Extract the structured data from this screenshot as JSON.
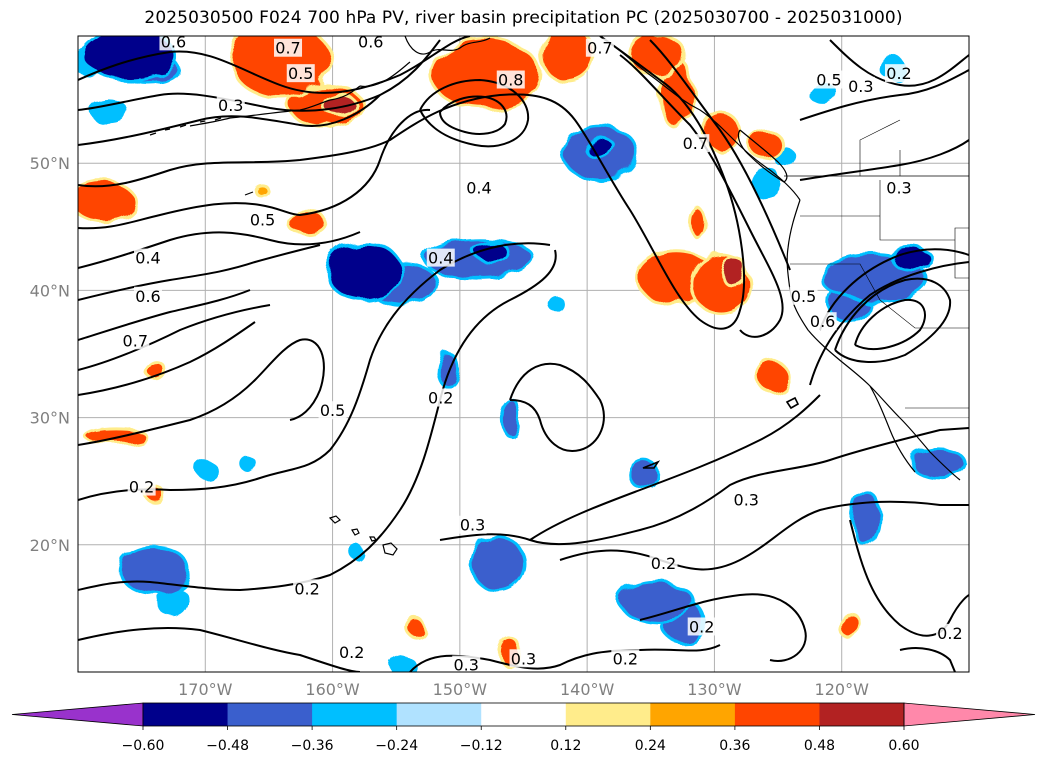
{
  "chart_data": {
    "type": "heatmap",
    "title": "2025030500 F024 700 hPa PV, river basin precipitation PC (2025030700 - 2025031000)",
    "map": {
      "projection": "lat-lon",
      "lon_range": [
        -180,
        -110
      ],
      "lat_range": [
        10,
        60
      ],
      "grid": true
    },
    "x_ticks": [
      {
        "lon": -170,
        "label": "170°W"
      },
      {
        "lon": -160,
        "label": "160°W"
      },
      {
        "lon": -150,
        "label": "150°W"
      },
      {
        "lon": -140,
        "label": "140°W"
      },
      {
        "lon": -130,
        "label": "130°W"
      },
      {
        "lon": -120,
        "label": "120°W"
      }
    ],
    "y_ticks": [
      {
        "lat": 20,
        "label": "20°N"
      },
      {
        "lat": 30,
        "label": "30°N"
      },
      {
        "lat": 40,
        "label": "40°N"
      },
      {
        "lat": 50,
        "label": "50°N"
      }
    ],
    "colorbar": {
      "extend": "both",
      "bounds": [
        -0.6,
        -0.48,
        -0.36,
        -0.24,
        -0.12,
        0.12,
        0.24,
        0.36,
        0.48,
        0.6
      ],
      "tick_labels": [
        "−0.60",
        "−0.48",
        "−0.36",
        "−0.24",
        "−0.12",
        "0.12",
        "0.24",
        "0.36",
        "0.48",
        "0.60"
      ],
      "colors": [
        "#9932cc",
        "#00008b",
        "#3a5fcd",
        "#00bfff",
        "#b0e2ff",
        "#ffffff",
        "#ffec8b",
        "#ffa500",
        "#ff4500",
        "#b22222",
        "#ff88aa"
      ]
    },
    "pv_contour_labels": [
      {
        "lon": -172.5,
        "lat": 59.5,
        "label": "0.6"
      },
      {
        "lon": -163.5,
        "lat": 59.0,
        "label": "0.7"
      },
      {
        "lon": -162.5,
        "lat": 57.0,
        "label": "0.5"
      },
      {
        "lon": -168.0,
        "lat": 54.5,
        "label": "0.3"
      },
      {
        "lon": -157.0,
        "lat": 59.5,
        "label": "0.6"
      },
      {
        "lon": -146.0,
        "lat": 56.5,
        "label": "0.8"
      },
      {
        "lon": -139.0,
        "lat": 59.0,
        "label": "0.7"
      },
      {
        "lon": -131.5,
        "lat": 51.5,
        "label": "0.7"
      },
      {
        "lon": -148.5,
        "lat": 48.0,
        "label": "0.4"
      },
      {
        "lon": -165.5,
        "lat": 45.5,
        "label": "0.5"
      },
      {
        "lon": -174.5,
        "lat": 42.5,
        "label": "0.4"
      },
      {
        "lon": -174.5,
        "lat": 39.5,
        "label": "0.6"
      },
      {
        "lon": -175.5,
        "lat": 36.0,
        "label": "0.7"
      },
      {
        "lon": -151.5,
        "lat": 42.5,
        "label": "0.4"
      },
      {
        "lon": -160.0,
        "lat": 30.5,
        "label": "0.5"
      },
      {
        "lon": -151.5,
        "lat": 31.5,
        "label": "0.2"
      },
      {
        "lon": -175.0,
        "lat": 24.5,
        "label": "0.2"
      },
      {
        "lon": -149.0,
        "lat": 21.5,
        "label": "0.3"
      },
      {
        "lon": -162.0,
        "lat": 16.5,
        "label": "0.2"
      },
      {
        "lon": -158.5,
        "lat": 11.5,
        "label": "0.2"
      },
      {
        "lon": -149.5,
        "lat": 10.5,
        "label": "0.3"
      },
      {
        "lon": -145.0,
        "lat": 11.0,
        "label": "0.3"
      },
      {
        "lon": -137.0,
        "lat": 11.0,
        "label": "0.2"
      },
      {
        "lon": -134.0,
        "lat": 18.5,
        "label": "0.2"
      },
      {
        "lon": -131.0,
        "lat": 13.5,
        "label": "0.2"
      },
      {
        "lon": -127.5,
        "lat": 23.5,
        "label": "0.3"
      },
      {
        "lon": -123.0,
        "lat": 39.5,
        "label": "0.5"
      },
      {
        "lon": -121.5,
        "lat": 37.5,
        "label": "0.6"
      },
      {
        "lon": -121.0,
        "lat": 56.5,
        "label": "0.5"
      },
      {
        "lon": -118.5,
        "lat": 56.0,
        "label": "0.3"
      },
      {
        "lon": -115.5,
        "lat": 57.0,
        "label": "0.2"
      },
      {
        "lon": -115.5,
        "lat": 48.0,
        "label": "0.3"
      },
      {
        "lon": -111.5,
        "lat": 13.0,
        "label": "0.2"
      }
    ],
    "precip_pc_regions": [
      {
        "lon": -176.0,
        "lat": 58.5,
        "value": -0.55,
        "rx": 3.5,
        "ry": 1.8
      },
      {
        "lon": -174.5,
        "lat": 57.5,
        "value": -0.4,
        "rx": 2.2,
        "ry": 1.0
      },
      {
        "lon": -179.0,
        "lat": 58.0,
        "value": -0.3,
        "rx": 1.2,
        "ry": 1.0
      },
      {
        "lon": -177.5,
        "lat": 54.0,
        "value": -0.35,
        "rx": 1.3,
        "ry": 0.7
      },
      {
        "lon": -164.0,
        "lat": 58.0,
        "value": 0.4,
        "rx": 3.8,
        "ry": 2.8
      },
      {
        "lon": -160.5,
        "lat": 54.5,
        "value": 0.42,
        "rx": 2.8,
        "ry": 1.5
      },
      {
        "lon": -159.5,
        "lat": 54.6,
        "value": 0.5,
        "rx": 1.2,
        "ry": 0.7
      },
      {
        "lon": -148.0,
        "lat": 57.0,
        "value": 0.4,
        "rx": 4.2,
        "ry": 2.6
      },
      {
        "lon": -141.5,
        "lat": 58.5,
        "value": 0.4,
        "rx": 2.0,
        "ry": 2.0
      },
      {
        "lon": -134.5,
        "lat": 58.5,
        "value": 0.4,
        "rx": 2.0,
        "ry": 1.6
      },
      {
        "lon": -133.0,
        "lat": 55.5,
        "value": 0.38,
        "rx": 1.2,
        "ry": 2.6
      },
      {
        "lon": -129.5,
        "lat": 52.5,
        "value": 0.38,
        "rx": 1.3,
        "ry": 1.4
      },
      {
        "lon": -126.0,
        "lat": 51.5,
        "value": 0.4,
        "rx": 1.2,
        "ry": 1.0
      },
      {
        "lon": -178.0,
        "lat": 47.0,
        "value": 0.38,
        "rx": 2.4,
        "ry": 1.4
      },
      {
        "lon": -165.5,
        "lat": 47.8,
        "value": 0.3,
        "rx": 0.4,
        "ry": 0.3
      },
      {
        "lon": -162.0,
        "lat": 45.3,
        "value": 0.38,
        "rx": 1.4,
        "ry": 0.8
      },
      {
        "lon": -133.0,
        "lat": 41.0,
        "value": 0.4,
        "rx": 3.0,
        "ry": 2.0
      },
      {
        "lon": -129.5,
        "lat": 40.5,
        "value": 0.45,
        "rx": 2.2,
        "ry": 2.2
      },
      {
        "lon": -128.5,
        "lat": 41.5,
        "value": 0.5,
        "rx": 0.9,
        "ry": 1.0
      },
      {
        "lon": -131.3,
        "lat": 45.3,
        "value": 0.38,
        "rx": 0.5,
        "ry": 1.0
      },
      {
        "lon": -125.5,
        "lat": 33.3,
        "value": 0.4,
        "rx": 1.1,
        "ry": 1.1
      },
      {
        "lon": -174.0,
        "lat": 33.8,
        "value": 0.4,
        "rx": 0.6,
        "ry": 0.6
      },
      {
        "lon": -177.0,
        "lat": 28.5,
        "value": 0.38,
        "rx": 2.3,
        "ry": 0.5
      },
      {
        "lon": -174.0,
        "lat": 24.0,
        "value": 0.4,
        "rx": 0.6,
        "ry": 0.5
      },
      {
        "lon": -153.5,
        "lat": 13.5,
        "value": 0.4,
        "rx": 0.6,
        "ry": 0.6
      },
      {
        "lon": -146.0,
        "lat": 11.5,
        "value": 0.42,
        "rx": 0.7,
        "ry": 1.0
      },
      {
        "lon": -119.5,
        "lat": 13.8,
        "value": 0.4,
        "rx": 0.8,
        "ry": 0.8
      },
      {
        "lon": -157.5,
        "lat": 41.5,
        "value": -0.5,
        "rx": 2.8,
        "ry": 2.2
      },
      {
        "lon": -154.5,
        "lat": 40.5,
        "value": -0.4,
        "rx": 2.6,
        "ry": 1.6
      },
      {
        "lon": -148.5,
        "lat": 42.5,
        "value": -0.48,
        "rx": 4.2,
        "ry": 1.4
      },
      {
        "lon": -147.5,
        "lat": 43.0,
        "value": -0.55,
        "rx": 1.2,
        "ry": 0.7
      },
      {
        "lon": -139.0,
        "lat": 50.8,
        "value": -0.45,
        "rx": 2.8,
        "ry": 2.0
      },
      {
        "lon": -139.0,
        "lat": 51.2,
        "value": -0.6,
        "rx": 1.1,
        "ry": 0.6
      },
      {
        "lon": -126.0,
        "lat": 48.5,
        "value": -0.3,
        "rx": 1.0,
        "ry": 1.0
      },
      {
        "lon": -124.5,
        "lat": 50.5,
        "value": -0.28,
        "rx": 0.6,
        "ry": 0.6
      },
      {
        "lon": -121.5,
        "lat": 55.5,
        "value": -0.3,
        "rx": 0.9,
        "ry": 0.6
      },
      {
        "lon": -116.0,
        "lat": 57.5,
        "value": -0.3,
        "rx": 0.8,
        "ry": 0.7
      },
      {
        "lon": -117.5,
        "lat": 41.0,
        "value": -0.42,
        "rx": 4.0,
        "ry": 1.7
      },
      {
        "lon": -114.5,
        "lat": 42.5,
        "value": -0.55,
        "rx": 1.5,
        "ry": 0.7
      },
      {
        "lon": -119.5,
        "lat": 39.0,
        "value": -0.4,
        "rx": 1.4,
        "ry": 1.4
      },
      {
        "lon": -112.5,
        "lat": 26.5,
        "value": -0.4,
        "rx": 2.0,
        "ry": 1.0
      },
      {
        "lon": -118.0,
        "lat": 22.0,
        "value": -0.38,
        "rx": 1.0,
        "ry": 2.0
      },
      {
        "lon": -151.0,
        "lat": 33.8,
        "value": -0.38,
        "rx": 0.7,
        "ry": 1.2
      },
      {
        "lon": -146.0,
        "lat": 30.0,
        "value": -0.38,
        "rx": 0.7,
        "ry": 1.3
      },
      {
        "lon": -142.5,
        "lat": 39.0,
        "value": -0.25,
        "rx": 0.4,
        "ry": 0.4
      },
      {
        "lon": -135.5,
        "lat": 25.5,
        "value": -0.4,
        "rx": 1.0,
        "ry": 1.0
      },
      {
        "lon": -174.0,
        "lat": 18.0,
        "value": -0.45,
        "rx": 2.6,
        "ry": 1.7
      },
      {
        "lon": -172.5,
        "lat": 15.5,
        "value": -0.35,
        "rx": 1.0,
        "ry": 1.0
      },
      {
        "lon": -147.0,
        "lat": 18.5,
        "value": -0.45,
        "rx": 2.0,
        "ry": 2.0
      },
      {
        "lon": -134.5,
        "lat": 15.5,
        "value": -0.42,
        "rx": 2.8,
        "ry": 1.4
      },
      {
        "lon": -132.5,
        "lat": 14.0,
        "value": -0.4,
        "rx": 1.6,
        "ry": 1.5
      },
      {
        "lon": -170.0,
        "lat": 26.0,
        "value": -0.35,
        "rx": 0.6,
        "ry": 0.5
      },
      {
        "lon": -166.5,
        "lat": 26.2,
        "value": -0.3,
        "rx": 0.4,
        "ry": 0.4
      },
      {
        "lon": -158.0,
        "lat": 19.3,
        "value": -0.28,
        "rx": 0.3,
        "ry": 0.4
      },
      {
        "lon": -154.5,
        "lat": 10.5,
        "value": -0.35,
        "rx": 0.8,
        "ry": 0.6
      }
    ]
  }
}
